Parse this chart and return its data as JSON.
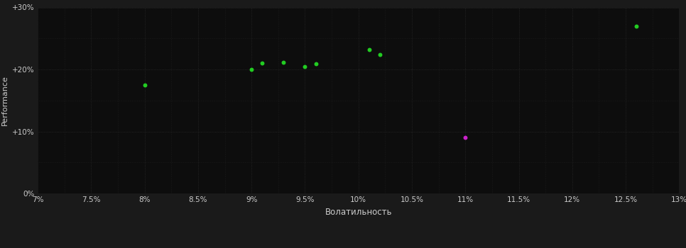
{
  "background_color": "#1a1a1a",
  "plot_bg_color": "#0d0d0d",
  "grid_color": "#2a2a2a",
  "text_color": "#cccccc",
  "xlabel": "Волатильность",
  "ylabel": "Performance",
  "xlim": [
    0.07,
    0.13
  ],
  "ylim": [
    0.0,
    0.3
  ],
  "xticks": [
    0.07,
    0.075,
    0.08,
    0.085,
    0.09,
    0.095,
    0.1,
    0.105,
    0.11,
    0.115,
    0.12,
    0.125,
    0.13
  ],
  "yticks": [
    0.0,
    0.1,
    0.2,
    0.3
  ],
  "ytick_labels": [
    "0%",
    "+10%",
    "+20%",
    "+30%"
  ],
  "xtick_labels": [
    "7%",
    "7.5%",
    "8%",
    "8.5%",
    "9%",
    "9.5%",
    "10%",
    "10.5%",
    "11%",
    "11.5%",
    "12%",
    "12.5%",
    "13%"
  ],
  "green_points": [
    [
      0.08,
      0.175
    ],
    [
      0.09,
      0.2
    ],
    [
      0.091,
      0.21
    ],
    [
      0.093,
      0.212
    ],
    [
      0.095,
      0.205
    ],
    [
      0.096,
      0.209
    ],
    [
      0.101,
      0.232
    ],
    [
      0.102,
      0.224
    ],
    [
      0.126,
      0.27
    ]
  ],
  "magenta_points": [
    [
      0.11,
      0.09
    ]
  ],
  "green_color": "#22cc22",
  "magenta_color": "#cc22cc",
  "marker_size": 18,
  "minor_xticks": [
    0.0725,
    0.0775,
    0.0825,
    0.0875,
    0.0925,
    0.0975,
    0.1025,
    0.1075,
    0.1125,
    0.1175,
    0.1225,
    0.1275
  ],
  "minor_yticks": [
    0.05,
    0.15,
    0.25
  ]
}
